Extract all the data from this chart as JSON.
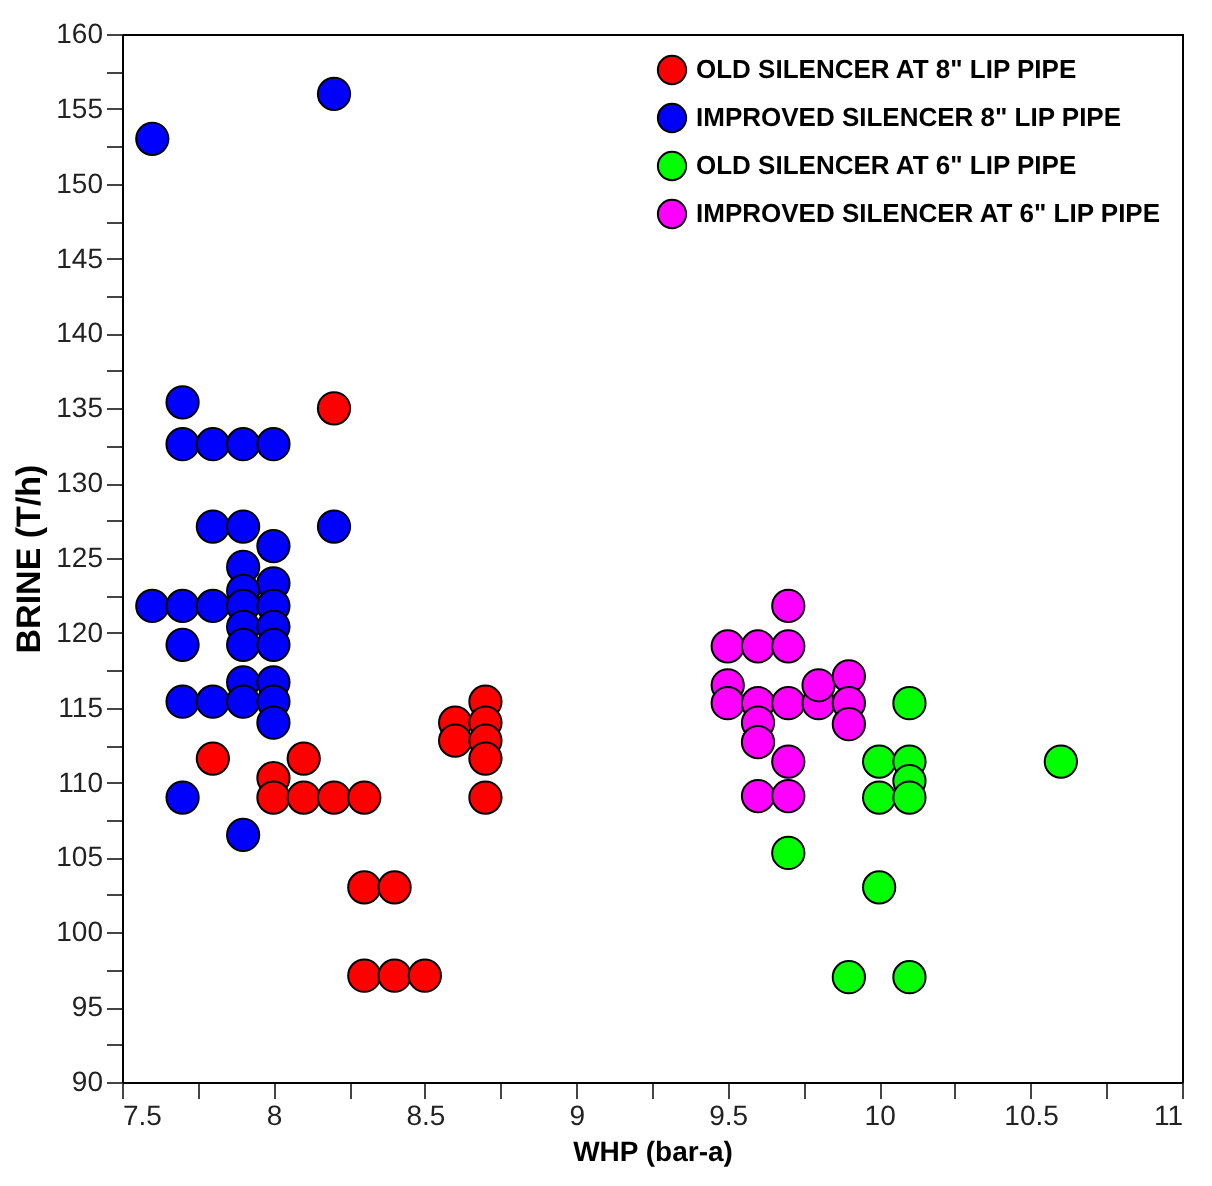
{
  "chart_data": {
    "type": "scatter",
    "xlabel": "WHP (bar-a)",
    "ylabel": "BRINE (T/h)",
    "xlim": [
      7.5,
      11
    ],
    "ylim": [
      90,
      160
    ],
    "xticks": [
      7.5,
      {
        "value": 7.75,
        "label": null
      },
      8,
      {
        "value": 8.25,
        "label": null
      },
      8.5,
      {
        "value": 8.75,
        "label": null
      },
      9,
      {
        "value": 9.25,
        "label": null
      },
      9.5,
      {
        "value": 9.75,
        "label": null
      },
      10,
      {
        "value": 10.25,
        "label": null
      },
      10.5,
      {
        "value": 10.75,
        "label": null
      },
      11
    ],
    "yticks": [
      90,
      {
        "value": 92.5,
        "label": null
      },
      95,
      {
        "value": 97.5,
        "label": null
      },
      100,
      {
        "value": 102.5,
        "label": null
      },
      105,
      {
        "value": 107.5,
        "label": null
      },
      110,
      {
        "value": 112.5,
        "label": null
      },
      115,
      {
        "value": 117.5,
        "label": null
      },
      120,
      {
        "value": 122.5,
        "label": null
      },
      125,
      {
        "value": 127.5,
        "label": null
      },
      130,
      {
        "value": 132.5,
        "label": null
      },
      135,
      {
        "value": 137.5,
        "label": null
      },
      140,
      {
        "value": 142.5,
        "label": null
      },
      145,
      {
        "value": 147.5,
        "label": null
      },
      150,
      {
        "value": 152.5,
        "label": null
      },
      155,
      {
        "value": 157.5,
        "label": null
      },
      160
    ],
    "grid": false,
    "legend": "top right",
    "marker": "circle",
    "series": [
      {
        "name": "OLD SILENCER AT 8\" LIP PIPE",
        "color": "#ff0000",
        "x": [
          8.2,
          7.8,
          8.1,
          8.0,
          8.0,
          8.1,
          8.2,
          8.3,
          8.7,
          8.3,
          8.4,
          8.3,
          8.4,
          8.5,
          8.6,
          8.6,
          8.7,
          8.7,
          8.7,
          8.7
        ],
        "values": [
          135,
          111.6,
          111.6,
          110.3,
          109,
          109,
          109,
          109,
          109,
          103,
          103,
          97.1,
          97.1,
          97.1,
          114,
          112.8,
          115.4,
          114,
          112.8,
          111.6
        ]
      },
      {
        "name": "IMPROVED SILENCER 8\" LIP PIPE",
        "color": "#0000ff",
        "x": [
          7.6,
          8.2,
          7.7,
          7.7,
          7.8,
          7.9,
          8.0,
          7.8,
          7.9,
          8.2,
          8.0,
          7.9,
          8.0,
          7.9,
          7.6,
          7.7,
          7.8,
          7.9,
          8.0,
          7.9,
          8.0,
          7.7,
          7.9,
          8.0,
          7.9,
          8.0,
          7.7,
          7.8,
          7.9,
          8.0,
          8.0,
          7.7,
          7.9
        ],
        "values": [
          153,
          156,
          135.4,
          132.6,
          132.6,
          132.6,
          132.6,
          127.1,
          127.1,
          127.1,
          125.8,
          124.4,
          123.3,
          122.8,
          121.8,
          121.8,
          121.8,
          121.8,
          121.8,
          120.4,
          120.4,
          119.2,
          119.2,
          119.2,
          116.7,
          116.7,
          115.4,
          115.4,
          115.4,
          115.4,
          114,
          109,
          106.5
        ]
      },
      {
        "name": "OLD SILENCER AT 6\" LIP PIPE",
        "color": "#00ff00",
        "x": [
          10.1,
          10.6,
          10.0,
          10.1,
          10.1,
          10.0,
          10.1,
          9.7,
          10.0,
          9.9,
          10.1
        ],
        "values": [
          115.3,
          111.4,
          111.4,
          111.4,
          110.1,
          109,
          109,
          105.3,
          103,
          97,
          97
        ]
      },
      {
        "name": "IMPROVED SILENCER AT 6\" LIP PIPE",
        "color": "#ff00ff",
        "x": [
          9.7,
          9.5,
          9.6,
          9.7,
          9.5,
          9.5,
          9.6,
          9.7,
          9.8,
          9.8,
          9.9,
          9.9,
          9.9,
          9.6,
          9.6,
          9.7,
          9.6,
          9.7
        ],
        "values": [
          121.8,
          119.1,
          119.1,
          119.1,
          116.5,
          115.3,
          115.3,
          115.3,
          115.3,
          116.5,
          117.1,
          115.3,
          113.9,
          114,
          112.7,
          111.4,
          109.1,
          109.1
        ]
      }
    ]
  }
}
